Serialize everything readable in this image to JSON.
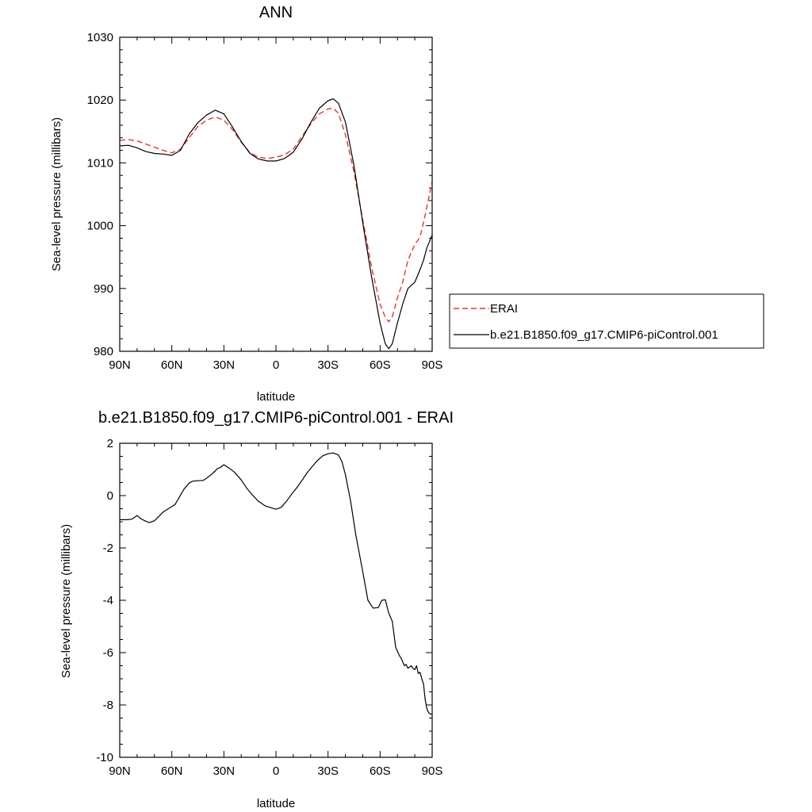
{
  "colors": {
    "erai": "#e8342e",
    "model": "#000000",
    "frame": "#000000",
    "background": "#ffffff"
  },
  "chart_data": [
    {
      "type": "line",
      "title": "ANN",
      "xlabel": "latitude",
      "ylabel": "Sea-level pressure (millibars)",
      "xlim": [
        -90,
        90
      ],
      "ylim": [
        980,
        1030
      ],
      "xticks": [
        {
          "value": -90,
          "label": "90N"
        },
        {
          "value": -60,
          "label": "60N"
        },
        {
          "value": -30,
          "label": "30N"
        },
        {
          "value": 0,
          "label": "0"
        },
        {
          "value": 30,
          "label": "30S"
        },
        {
          "value": 60,
          "label": "60S"
        },
        {
          "value": 90,
          "label": "90S"
        }
      ],
      "yticks": [
        {
          "value": 980,
          "label": "980"
        },
        {
          "value": 990,
          "label": "990"
        },
        {
          "value": 1000,
          "label": "1000"
        },
        {
          "value": 1010,
          "label": "1010"
        },
        {
          "value": 1020,
          "label": "1020"
        },
        {
          "value": 1030,
          "label": "1030"
        }
      ],
      "legend_position": "right",
      "series": [
        {
          "name": "ERAI",
          "style": "dashed",
          "color": "#e8342e",
          "x": [
            -90,
            -85,
            -80,
            -75,
            -70,
            -65,
            -60,
            -55,
            -50,
            -45,
            -40,
            -35,
            -30,
            -25,
            -20,
            -15,
            -10,
            -5,
            0,
            5,
            10,
            15,
            20,
            25,
            30,
            33,
            36,
            40,
            45,
            50,
            55,
            60,
            63,
            65,
            67,
            70,
            73,
            76,
            80,
            83,
            85,
            87,
            90
          ],
          "y": [
            1013.6,
            1013.7,
            1013.5,
            1013.0,
            1012.5,
            1012.0,
            1011.6,
            1012.2,
            1014.0,
            1015.8,
            1016.8,
            1017.3,
            1016.8,
            1015.3,
            1013.3,
            1011.6,
            1010.9,
            1010.7,
            1010.9,
            1011.3,
            1012.2,
            1014.2,
            1016.2,
            1017.8,
            1018.6,
            1018.7,
            1017.9,
            1014.5,
            1008.5,
            1001.0,
            993.5,
            987.5,
            985.4,
            984.7,
            985.5,
            988.5,
            991.0,
            994.5,
            997.0,
            998.2,
            1000.5,
            1003.0,
            1007.0
          ]
        },
        {
          "name": "b.e21.B1850.f09_g17.CMIP6-piControl.001",
          "style": "solid",
          "color": "#000000",
          "x": [
            -90,
            -85,
            -80,
            -75,
            -70,
            -65,
            -60,
            -55,
            -50,
            -45,
            -40,
            -35,
            -30,
            -25,
            -20,
            -15,
            -10,
            -5,
            0,
            5,
            10,
            15,
            20,
            25,
            30,
            33,
            36,
            40,
            45,
            50,
            55,
            60,
            63,
            65,
            67,
            70,
            73,
            76,
            80,
            83,
            85,
            87,
            90
          ],
          "y": [
            1012.7,
            1012.8,
            1012.4,
            1011.8,
            1011.5,
            1011.4,
            1011.2,
            1012.0,
            1014.6,
            1016.4,
            1017.6,
            1018.4,
            1017.8,
            1015.7,
            1013.4,
            1011.5,
            1010.6,
            1010.3,
            1010.3,
            1010.7,
            1011.7,
            1013.8,
            1016.4,
            1018.7,
            1019.9,
            1020.2,
            1019.5,
            1016.5,
            1009.5,
            1000.5,
            992.0,
            984.5,
            981.2,
            980.4,
            981.2,
            984.5,
            987.5,
            990.0,
            991.0,
            993.0,
            994.5,
            996.5,
            998.5
          ]
        }
      ]
    },
    {
      "type": "line",
      "title": "b.e21.B1850.f09_g17.CMIP6-piControl.001 - ERAI",
      "xlabel": "latitude",
      "ylabel": "Sea-level pressure (millibars)",
      "xlim": [
        -90,
        90
      ],
      "ylim": [
        -10,
        2
      ],
      "xticks": [
        {
          "value": -90,
          "label": "90N"
        },
        {
          "value": -60,
          "label": "60N"
        },
        {
          "value": -30,
          "label": "30N"
        },
        {
          "value": 0,
          "label": "0"
        },
        {
          "value": 30,
          "label": "30S"
        },
        {
          "value": 60,
          "label": "60S"
        },
        {
          "value": 90,
          "label": "90S"
        }
      ],
      "yticks": [
        {
          "value": -10,
          "label": "-10"
        },
        {
          "value": -8,
          "label": "-8"
        },
        {
          "value": -6,
          "label": "-6"
        },
        {
          "value": -4,
          "label": "-4"
        },
        {
          "value": -2,
          "label": "-2"
        },
        {
          "value": 0,
          "label": "0"
        },
        {
          "value": 2,
          "label": "2"
        }
      ],
      "series": [
        {
          "style": "solid",
          "color": "#000000",
          "x": [
            -90,
            -86,
            -83,
            -80,
            -78,
            -75,
            -73,
            -70,
            -68,
            -65,
            -62,
            -60,
            -58,
            -56,
            -53,
            -50,
            -48,
            -45,
            -42,
            -40,
            -37,
            -35,
            -34,
            -32,
            -30,
            -27,
            -24,
            -20,
            -17,
            -14,
            -10,
            -6,
            -2,
            0,
            3,
            6,
            9,
            12,
            15,
            18,
            21,
            24,
            27,
            30,
            33,
            36,
            38,
            40,
            43,
            46,
            50,
            53,
            56,
            59,
            61,
            63,
            65,
            67,
            69,
            71,
            72,
            73,
            74,
            75,
            76,
            77,
            78,
            79,
            80,
            81,
            82,
            83,
            84,
            85,
            86,
            87,
            88,
            89,
            90
          ],
          "y": [
            -0.92,
            -0.92,
            -0.9,
            -0.76,
            -0.88,
            -0.98,
            -1.03,
            -0.96,
            -0.83,
            -0.63,
            -0.5,
            -0.42,
            -0.33,
            -0.1,
            0.25,
            0.48,
            0.55,
            0.57,
            0.58,
            0.66,
            0.82,
            0.94,
            1.02,
            1.08,
            1.18,
            1.05,
            0.9,
            0.6,
            0.3,
            0.05,
            -0.22,
            -0.4,
            -0.48,
            -0.52,
            -0.45,
            -0.22,
            0.05,
            0.3,
            0.58,
            0.88,
            1.12,
            1.35,
            1.52,
            1.6,
            1.63,
            1.55,
            1.3,
            0.8,
            -0.2,
            -1.5,
            -2.9,
            -4.0,
            -4.3,
            -4.28,
            -4.0,
            -3.98,
            -4.5,
            -4.8,
            -5.8,
            -6.1,
            -6.2,
            -6.35,
            -6.5,
            -6.45,
            -6.6,
            -6.55,
            -6.5,
            -6.6,
            -6.65,
            -6.5,
            -6.8,
            -6.75,
            -7.0,
            -7.2,
            -7.8,
            -8.15,
            -8.3,
            -8.35,
            -8.35
          ]
        }
      ]
    }
  ]
}
